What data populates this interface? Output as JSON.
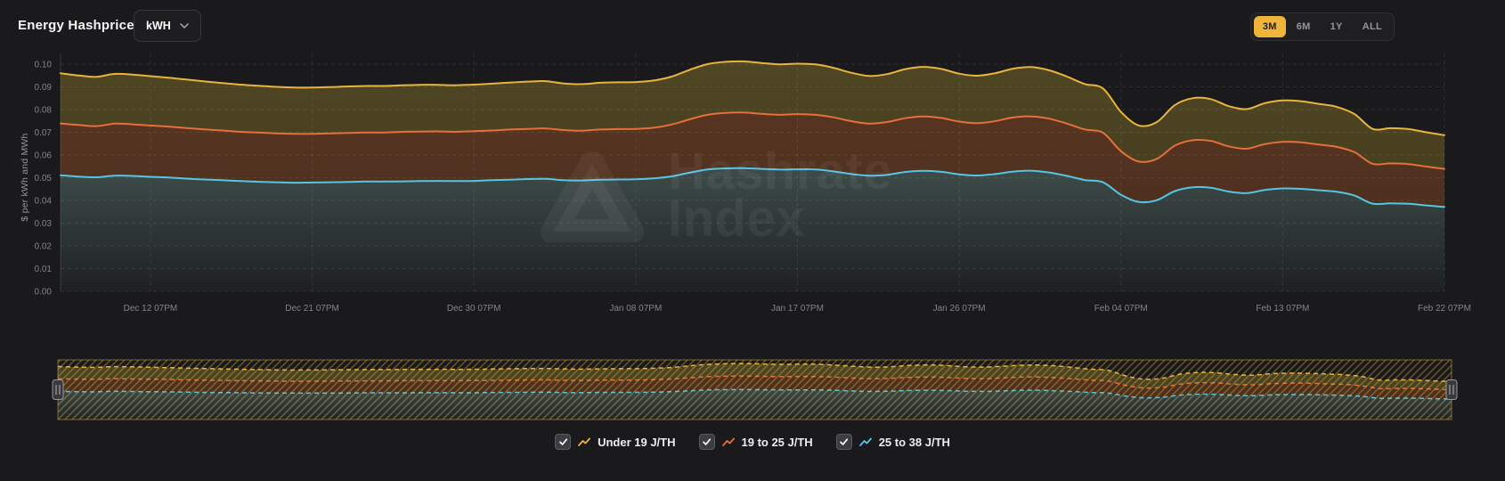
{
  "header": {
    "title": "Energy Hashprice",
    "unit_selector": {
      "value": "kWH"
    },
    "range_selector": {
      "options": [
        "3M",
        "6M",
        "1Y",
        "ALL"
      ],
      "active": "3M",
      "active_color": "#efb53b"
    }
  },
  "watermark": {
    "line1": "Hashrate",
    "line2": "Index"
  },
  "legend": {
    "items": [
      {
        "label": "Under 19 J/TH",
        "checked": true,
        "color": "#e9b43e"
      },
      {
        "label": "19 to 25 J/TH",
        "checked": true,
        "color": "#e4703a"
      },
      {
        "label": "25 to 38 J/TH",
        "checked": true,
        "color": "#57c4e4"
      }
    ]
  },
  "chart_data": {
    "type": "area",
    "title": "Energy Hashprice",
    "xlabel": "",
    "ylabel": "$ per kWh and MWh",
    "ylim": [
      0,
      0.1
    ],
    "grid": true,
    "legend_position": "bottom",
    "y_ticks": [
      "0.00",
      "0.01",
      "0.02",
      "0.03",
      "0.04",
      "0.05",
      "0.06",
      "0.07",
      "0.08",
      "0.09",
      "0.10"
    ],
    "x_tick_labels": [
      "Dec 12 07PM",
      "Dec 21 07PM",
      "Dec 30 07PM",
      "Jan 08 07PM",
      "Jan 17 07PM",
      "Jan 26 07PM",
      "Feb 04 07PM",
      "Feb 13 07PM",
      "Feb 22 07PM"
    ],
    "x_tick_indices": [
      5,
      14,
      23,
      32,
      41,
      50,
      59,
      68,
      77
    ],
    "dates": [
      "Dec 07",
      "Dec 08",
      "Dec 09",
      "Dec 10",
      "Dec 11",
      "Dec 12",
      "Dec 13",
      "Dec 14",
      "Dec 15",
      "Dec 16",
      "Dec 17",
      "Dec 18",
      "Dec 19",
      "Dec 20",
      "Dec 21",
      "Dec 22",
      "Dec 23",
      "Dec 24",
      "Dec 25",
      "Dec 26",
      "Dec 27",
      "Dec 28",
      "Dec 29",
      "Dec 30",
      "Dec 31",
      "Jan 01",
      "Jan 02",
      "Jan 03",
      "Jan 04",
      "Jan 05",
      "Jan 06",
      "Jan 07",
      "Jan 08",
      "Jan 09",
      "Jan 10",
      "Jan 11",
      "Jan 12",
      "Jan 13",
      "Jan 14",
      "Jan 15",
      "Jan 16",
      "Jan 17",
      "Jan 18",
      "Jan 19",
      "Jan 20",
      "Jan 21",
      "Jan 22",
      "Jan 23",
      "Jan 24",
      "Jan 25",
      "Jan 26",
      "Jan 27",
      "Jan 28",
      "Jan 29",
      "Jan 30",
      "Jan 31",
      "Feb 01",
      "Feb 02",
      "Feb 03",
      "Feb 04",
      "Feb 05",
      "Feb 06",
      "Feb 07",
      "Feb 08",
      "Feb 09",
      "Feb 10",
      "Feb 11",
      "Feb 12",
      "Feb 13",
      "Feb 14",
      "Feb 15",
      "Feb 16",
      "Feb 17",
      "Feb 18",
      "Feb 19",
      "Feb 20",
      "Feb 21",
      "Feb 22"
    ],
    "series": [
      {
        "name": "Under 19 J/TH",
        "color": "#e9b43e",
        "values": [
          0.096,
          0.095,
          0.0944,
          0.0957,
          0.0954,
          0.0947,
          0.094,
          0.0932,
          0.0924,
          0.0917,
          0.091,
          0.0905,
          0.09,
          0.0897,
          0.0897,
          0.0899,
          0.0902,
          0.0904,
          0.0904,
          0.0907,
          0.0909,
          0.0909,
          0.0907,
          0.091,
          0.0914,
          0.0919,
          0.0923,
          0.0925,
          0.0915,
          0.0912,
          0.0918,
          0.092,
          0.0921,
          0.0928,
          0.0945,
          0.0975,
          0.1,
          0.101,
          0.1012,
          0.1005,
          0.0999,
          0.1002,
          0.0999,
          0.0984,
          0.0962,
          0.0948,
          0.0956,
          0.0978,
          0.0988,
          0.0979,
          0.0958,
          0.0949,
          0.096,
          0.098,
          0.0987,
          0.0973,
          0.0945,
          0.0912,
          0.0893,
          0.079,
          0.073,
          0.0745,
          0.082,
          0.085,
          0.0846,
          0.0815,
          0.0802,
          0.0828,
          0.084,
          0.0837,
          0.0825,
          0.0812,
          0.078,
          0.0715,
          0.0718,
          0.0714,
          0.07,
          0.0687
        ]
      },
      {
        "name": "19 to 25 J/TH",
        "color": "#e4703a",
        "values": [
          0.0739,
          0.0732,
          0.0727,
          0.0738,
          0.0735,
          0.073,
          0.0725,
          0.0719,
          0.0713,
          0.0708,
          0.0702,
          0.0699,
          0.0695,
          0.0693,
          0.0693,
          0.0695,
          0.0697,
          0.0699,
          0.0699,
          0.0702,
          0.0703,
          0.0704,
          0.0702,
          0.0705,
          0.0708,
          0.0712,
          0.0715,
          0.0717,
          0.071,
          0.0707,
          0.0712,
          0.0714,
          0.0715,
          0.072,
          0.0734,
          0.0757,
          0.0777,
          0.0785,
          0.0787,
          0.0781,
          0.0777,
          0.078,
          0.0777,
          0.0766,
          0.0749,
          0.0738,
          0.0745,
          0.0762,
          0.077,
          0.0763,
          0.0747,
          0.074,
          0.0749,
          0.0765,
          0.077,
          0.076,
          0.0738,
          0.0712,
          0.0698,
          0.0617,
          0.0571,
          0.0583,
          0.0641,
          0.0665,
          0.0662,
          0.0638,
          0.0628,
          0.0648,
          0.0658,
          0.0656,
          0.0646,
          0.0636,
          0.0612,
          0.0561,
          0.0563,
          0.056,
          0.0549,
          0.0539
        ]
      },
      {
        "name": "25 to 38 J/TH",
        "color": "#57c4e4",
        "values": [
          0.0511,
          0.0505,
          0.0502,
          0.0509,
          0.0508,
          0.0504,
          0.0501,
          0.0496,
          0.0492,
          0.0489,
          0.0485,
          0.0482,
          0.048,
          0.0478,
          0.0479,
          0.048,
          0.0481,
          0.0483,
          0.0483,
          0.0484,
          0.0485,
          0.0486,
          0.0485,
          0.0486,
          0.0489,
          0.0491,
          0.0494,
          0.0495,
          0.0489,
          0.0488,
          0.0491,
          0.0492,
          0.0493,
          0.0497,
          0.0506,
          0.0522,
          0.0536,
          0.0541,
          0.0542,
          0.0539,
          0.0536,
          0.0537,
          0.0536,
          0.0528,
          0.0516,
          0.0509,
          0.0513,
          0.0525,
          0.053,
          0.0526,
          0.0515,
          0.051,
          0.0516,
          0.0527,
          0.0531,
          0.0523,
          0.0508,
          0.049,
          0.048,
          0.0425,
          0.0393,
          0.0401,
          0.0441,
          0.0458,
          0.0456,
          0.0439,
          0.0432,
          0.0446,
          0.0453,
          0.0451,
          0.0445,
          0.0438,
          0.0421,
          0.0386,
          0.0387,
          0.0385,
          0.0378,
          0.0371
        ]
      }
    ]
  }
}
